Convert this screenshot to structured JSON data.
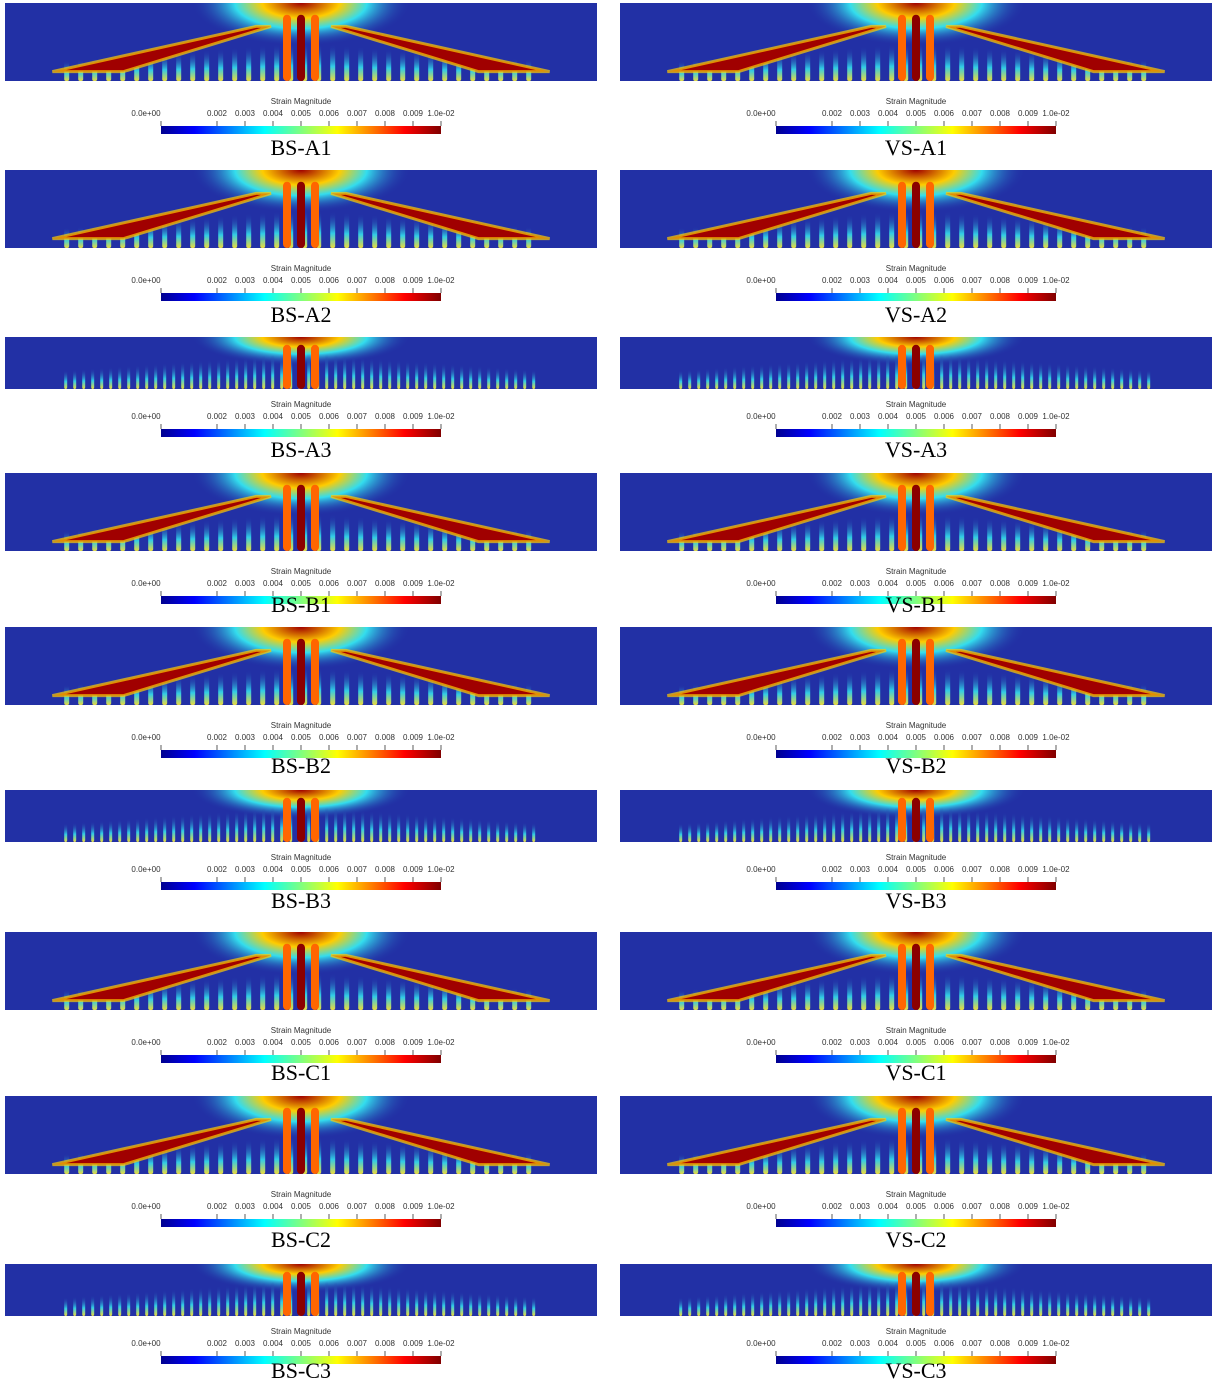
{
  "colorbar": {
    "title": "Strain Magnitude",
    "labels": [
      "0.0e+00",
      "0.002",
      "0.003",
      "0.004",
      "0.005",
      "0.006",
      "0.007",
      "0.008",
      "0.009",
      "1.0e-02"
    ]
  },
  "panels": [
    {
      "label": "BS-A1"
    },
    {
      "label": "VS-A1"
    },
    {
      "label": "BS-A2"
    },
    {
      "label": "VS-A2"
    },
    {
      "label": "BS-A3"
    },
    {
      "label": "VS-A3"
    },
    {
      "label": "BS-B1"
    },
    {
      "label": "VS-B1"
    },
    {
      "label": "BS-B2"
    },
    {
      "label": "VS-B2"
    },
    {
      "label": "BS-B3"
    },
    {
      "label": "VS-B3"
    },
    {
      "label": "BS-C1"
    },
    {
      "label": "VS-C1"
    },
    {
      "label": "BS-C2"
    },
    {
      "label": "VS-C2"
    },
    {
      "label": "BS-C3"
    },
    {
      "label": "VS-C3"
    }
  ]
}
